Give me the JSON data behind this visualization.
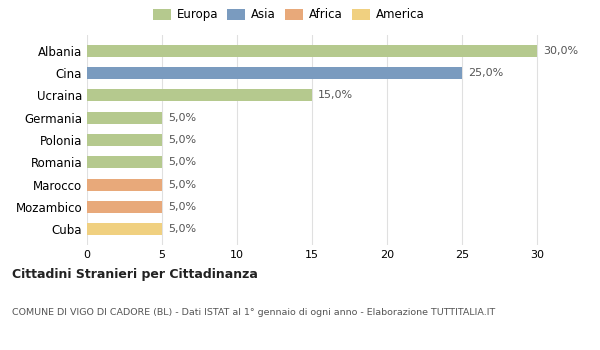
{
  "categories": [
    "Albania",
    "Cina",
    "Ucraina",
    "Germania",
    "Polonia",
    "Romania",
    "Marocco",
    "Mozambico",
    "Cuba"
  ],
  "values": [
    30.0,
    25.0,
    15.0,
    5.0,
    5.0,
    5.0,
    5.0,
    5.0,
    5.0
  ],
  "bar_colors": [
    "#b5c98e",
    "#7a9bbf",
    "#b5c98e",
    "#b5c98e",
    "#b5c98e",
    "#b5c98e",
    "#e8a97a",
    "#e8a97a",
    "#f0d080"
  ],
  "labels": [
    "30,0%",
    "25,0%",
    "15,0%",
    "5,0%",
    "5,0%",
    "5,0%",
    "5,0%",
    "5,0%",
    "5,0%"
  ],
  "legend_labels": [
    "Europa",
    "Asia",
    "Africa",
    "America"
  ],
  "legend_colors": [
    "#b5c98e",
    "#7a9bbf",
    "#e8a97a",
    "#f0d080"
  ],
  "xlim": [
    0,
    32
  ],
  "xticks": [
    0,
    5,
    10,
    15,
    20,
    25,
    30
  ],
  "title": "Cittadini Stranieri per Cittadinanza",
  "subtitle": "COMUNE DI VIGO DI CADORE (BL) - Dati ISTAT al 1° gennaio di ogni anno - Elaborazione TUTTITALIA.IT",
  "background_color": "#ffffff",
  "grid_color": "#e0e0e0"
}
